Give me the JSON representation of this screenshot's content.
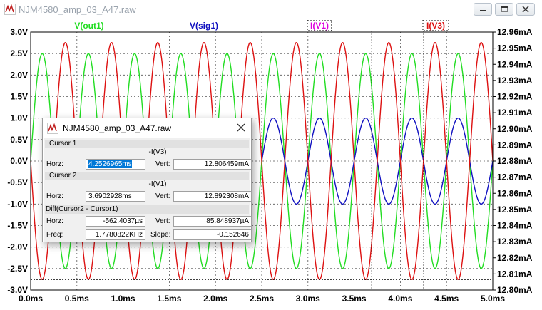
{
  "window": {
    "title": "NJM4580_amp_03_A47.raw"
  },
  "traces": {
    "out1": {
      "label": "V(out1)",
      "color": "#22dd22"
    },
    "sig1": {
      "label": "V(sig1)",
      "color": "#1010c0"
    },
    "iv1": {
      "label": "I(V1)",
      "color": "#dd00dd"
    },
    "iv3": {
      "label": "I(V3)",
      "color": "#dd1111"
    }
  },
  "axes": {
    "left_ticks": [
      "3.0V",
      "2.5V",
      "2.0V",
      "1.5V",
      "1.0V",
      "0.5V",
      "0.0V",
      "-0.5V",
      "-1.0V",
      "-1.5V",
      "-2.0V",
      "-2.5V",
      "-3.0V"
    ],
    "right_ticks": [
      "12.96mA",
      "12.95mA",
      "12.94mA",
      "12.93mA",
      "12.92mA",
      "12.91mA",
      "12.90mA",
      "12.89mA",
      "12.88mA",
      "12.87mA",
      "12.86mA",
      "12.85mA",
      "12.84mA",
      "12.83mA",
      "12.82mA",
      "12.81mA",
      "12.80mA"
    ],
    "x_ticks": [
      "0.0ms",
      "0.5ms",
      "1.0ms",
      "1.5ms",
      "2.0ms",
      "2.5ms",
      "3.0ms",
      "3.5ms",
      "4.0ms",
      "4.5ms",
      "5.0ms"
    ]
  },
  "chart_data": {
    "type": "line",
    "x_range_ms": [
      0,
      5
    ],
    "left_axis_range_V": [
      -3,
      3
    ],
    "right_axis_range_mA": [
      12.8,
      12.96
    ],
    "grid": true,
    "series": [
      {
        "name": "V(out1)",
        "axis": "left",
        "frequency_kHz": 2,
        "amplitude_V": 2.5,
        "phase": "sine"
      },
      {
        "name": "V(sig1)",
        "axis": "left",
        "frequency_kHz": 2,
        "amplitude_V": 1.0,
        "phase": "sine",
        "starts_ms": 2.5
      },
      {
        "name": "I(V3)",
        "axis": "right",
        "frequency_kHz": 2,
        "min_mA": 12.8065,
        "max_mA": 12.9535,
        "phase": "sine"
      }
    ],
    "cursors_ms": [
      4.2526965,
      3.6902928
    ]
  },
  "dialog": {
    "title": "NJM4580_amp_03_A47.raw",
    "cursor1": {
      "heading": "Cursor 1",
      "trace": "-I(V3)",
      "horz_label": "Horz:",
      "horz": "4.2526965ms",
      "vert_label": "Vert:",
      "vert": "12.806459mA"
    },
    "cursor2": {
      "heading": "Cursor 2",
      "trace": "-I(V1)",
      "horz_label": "Horz:",
      "horz": "3.6902928ms",
      "vert_label": "Vert:",
      "vert": "12.892308mA"
    },
    "diff": {
      "heading": "Diff(Cursor2 - Cursor1)",
      "horz_label": "Horz:",
      "horz": "-562.4037µs",
      "vert_label": "Vert:",
      "vert": "85.848937µA",
      "freq_label": "Freq:",
      "freq": "1.7780822KHz",
      "slope_label": "Slope:",
      "slope": "-0.152646"
    }
  }
}
